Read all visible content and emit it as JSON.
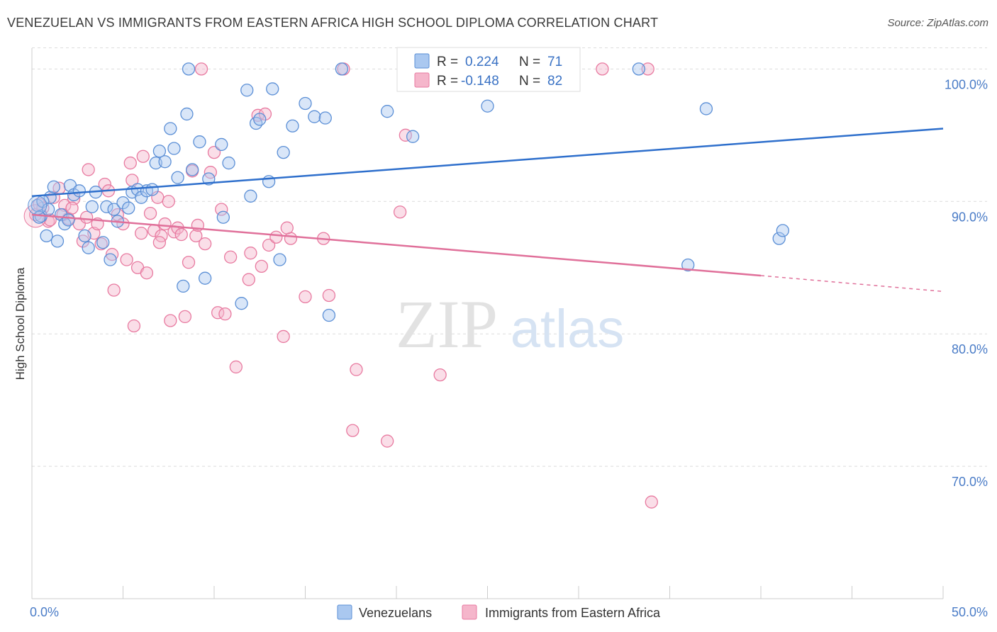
{
  "title": "VENEZUELAN VS IMMIGRANTS FROM EASTERN AFRICA HIGH SCHOOL DIPLOMA CORRELATION CHART",
  "source": "Source: ZipAtlas.com",
  "watermark": {
    "zip": "ZIP",
    "atlas": "atlas"
  },
  "colors": {
    "blue": "#5b8fd6",
    "blue_fill": "#aac8f0",
    "blue_line": "#2e6fcc",
    "pink": "#e87aa0",
    "pink_fill": "#f5b6cb",
    "pink_line": "#e0709a",
    "axis_label": "#4a7cc7"
  },
  "legend": {
    "rows": [
      {
        "r_label": "R =",
        "r_value": "0.224",
        "n_label": "N =",
        "n_value": "71",
        "color": "blue"
      },
      {
        "r_label": "R =",
        "r_value": "-0.148",
        "n_label": "N =",
        "n_value": "82",
        "color": "pink"
      }
    ]
  },
  "bottom_legend": [
    "Venezuelans",
    "Immigrants from Eastern Africa"
  ],
  "chart_data": {
    "type": "scatter",
    "xlabel": "",
    "ylabel": "High School Diploma",
    "xlim": [
      0,
      50
    ],
    "ylim": [
      60,
      102
    ],
    "x_tick_labels": [
      "0.0%",
      "50.0%"
    ],
    "y_ticks": [
      70,
      80,
      90,
      100
    ],
    "y_tick_labels": [
      "70.0%",
      "80.0%",
      "90.0%",
      "100.0%"
    ],
    "grid": "horizontal dashed",
    "legend_position": "top-center",
    "series": [
      {
        "name": "Venezuelans",
        "color": "blue",
        "trend": {
          "x": [
            0,
            50
          ],
          "y": [
            90.4,
            95.5
          ]
        },
        "points": [
          [
            0.3,
            89.7
          ],
          [
            0.5,
            88.9
          ],
          [
            0.8,
            87.4
          ],
          [
            1.0,
            90.3
          ],
          [
            1.2,
            91.1
          ],
          [
            1.4,
            87.0
          ],
          [
            1.6,
            89.0
          ],
          [
            1.8,
            88.3
          ],
          [
            2.1,
            91.2
          ],
          [
            2.3,
            90.5
          ],
          [
            2.6,
            90.8
          ],
          [
            2.9,
            87.4
          ],
          [
            3.1,
            86.5
          ],
          [
            3.3,
            89.6
          ],
          [
            3.5,
            90.7
          ],
          [
            3.9,
            86.9
          ],
          [
            4.1,
            89.6
          ],
          [
            4.3,
            85.6
          ],
          [
            4.5,
            89.4
          ],
          [
            4.7,
            88.5
          ],
          [
            5.0,
            89.9
          ],
          [
            5.3,
            89.5
          ],
          [
            5.5,
            90.7
          ],
          [
            5.8,
            90.9
          ],
          [
            6.0,
            90.3
          ],
          [
            6.3,
            90.8
          ],
          [
            6.6,
            90.9
          ],
          [
            6.8,
            92.9
          ],
          [
            7.0,
            93.8
          ],
          [
            7.3,
            93.0
          ],
          [
            7.6,
            95.5
          ],
          [
            7.8,
            94.0
          ],
          [
            8.0,
            91.8
          ],
          [
            8.3,
            83.6
          ],
          [
            8.5,
            96.6
          ],
          [
            8.8,
            92.4
          ],
          [
            8.6,
            100.0
          ],
          [
            9.2,
            94.5
          ],
          [
            9.5,
            84.2
          ],
          [
            9.7,
            91.7
          ],
          [
            10.4,
            94.3
          ],
          [
            10.5,
            88.8
          ],
          [
            10.8,
            92.9
          ],
          [
            11.5,
            82.3
          ],
          [
            11.8,
            98.4
          ],
          [
            12.0,
            90.4
          ],
          [
            12.3,
            95.9
          ],
          [
            12.5,
            96.2
          ],
          [
            13.0,
            91.5
          ],
          [
            13.2,
            98.5
          ],
          [
            13.6,
            85.6
          ],
          [
            13.8,
            93.7
          ],
          [
            14.3,
            95.7
          ],
          [
            15.0,
            97.4
          ],
          [
            15.5,
            96.4
          ],
          [
            16.1,
            96.3
          ],
          [
            16.3,
            81.4
          ],
          [
            17.0,
            100.0
          ],
          [
            19.5,
            96.8
          ],
          [
            20.9,
            94.9
          ],
          [
            23.5,
            100.0
          ],
          [
            25.0,
            97.2
          ],
          [
            33.3,
            100.0
          ],
          [
            36.0,
            85.2
          ],
          [
            37.0,
            97.0
          ],
          [
            41.0,
            87.2
          ],
          [
            41.2,
            87.8
          ],
          [
            0.4,
            88.8
          ],
          [
            0.6,
            90.0
          ],
          [
            0.9,
            89.4
          ],
          [
            2.0,
            88.6
          ]
        ]
      },
      {
        "name": "Immigrants from Eastern Africa",
        "color": "pink",
        "trend": {
          "x": [
            0,
            40
          ],
          "y": [
            89.0,
            84.4
          ]
        },
        "trend_dashed": {
          "x": [
            40,
            50
          ],
          "y": [
            84.4,
            83.2
          ]
        },
        "points": [
          [
            0.2,
            89.0
          ],
          [
            0.4,
            89.8
          ],
          [
            0.6,
            89.5
          ],
          [
            0.9,
            88.5
          ],
          [
            1.2,
            90.3
          ],
          [
            1.5,
            91.0
          ],
          [
            1.8,
            89.7
          ],
          [
            2.0,
            88.7
          ],
          [
            2.3,
            90.2
          ],
          [
            2.6,
            88.3
          ],
          [
            2.8,
            87.0
          ],
          [
            3.0,
            88.8
          ],
          [
            3.1,
            92.4
          ],
          [
            3.4,
            87.6
          ],
          [
            3.6,
            88.3
          ],
          [
            3.8,
            86.8
          ],
          [
            4.0,
            91.3
          ],
          [
            4.2,
            90.8
          ],
          [
            4.4,
            86.0
          ],
          [
            4.5,
            83.3
          ],
          [
            4.7,
            89.0
          ],
          [
            5.0,
            88.3
          ],
          [
            5.2,
            85.6
          ],
          [
            5.4,
            92.9
          ],
          [
            5.6,
            80.6
          ],
          [
            5.8,
            85.0
          ],
          [
            6.0,
            87.6
          ],
          [
            6.1,
            93.4
          ],
          [
            6.3,
            84.6
          ],
          [
            6.5,
            89.1
          ],
          [
            6.7,
            87.8
          ],
          [
            6.9,
            90.3
          ],
          [
            7.1,
            87.4
          ],
          [
            7.3,
            88.3
          ],
          [
            7.5,
            90.0
          ],
          [
            7.6,
            81.0
          ],
          [
            7.8,
            87.7
          ],
          [
            8.0,
            88.0
          ],
          [
            8.2,
            87.5
          ],
          [
            8.4,
            81.3
          ],
          [
            8.6,
            85.4
          ],
          [
            8.8,
            92.3
          ],
          [
            9.0,
            87.4
          ],
          [
            9.3,
            100.0
          ],
          [
            9.5,
            86.8
          ],
          [
            9.8,
            92.2
          ],
          [
            10.0,
            93.7
          ],
          [
            10.2,
            81.6
          ],
          [
            10.4,
            89.4
          ],
          [
            10.6,
            81.5
          ],
          [
            10.9,
            85.8
          ],
          [
            11.2,
            77.5
          ],
          [
            11.9,
            84.1
          ],
          [
            12.4,
            96.5
          ],
          [
            12.6,
            85.1
          ],
          [
            12.8,
            96.6
          ],
          [
            13.0,
            86.7
          ],
          [
            13.4,
            87.3
          ],
          [
            13.8,
            79.8
          ],
          [
            14.2,
            87.2
          ],
          [
            15.0,
            82.8
          ],
          [
            16.0,
            87.2
          ],
          [
            16.3,
            82.9
          ],
          [
            17.1,
            100.0
          ],
          [
            17.6,
            72.7
          ],
          [
            17.8,
            77.3
          ],
          [
            19.5,
            71.9
          ],
          [
            20.2,
            89.2
          ],
          [
            20.5,
            95.0
          ],
          [
            22.4,
            76.9
          ],
          [
            26.3,
            100.0
          ],
          [
            31.3,
            100.0
          ],
          [
            33.8,
            100.0
          ],
          [
            34.0,
            67.3
          ],
          [
            1.0,
            88.6
          ],
          [
            1.7,
            89.0
          ],
          [
            2.2,
            89.5
          ],
          [
            5.5,
            91.6
          ],
          [
            7.0,
            86.9
          ],
          [
            9.1,
            88.2
          ],
          [
            12.0,
            86.1
          ],
          [
            14.0,
            88.0
          ]
        ]
      }
    ]
  }
}
